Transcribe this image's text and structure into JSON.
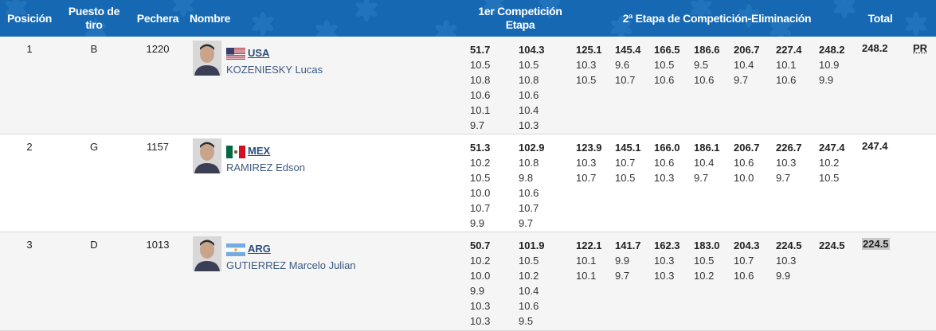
{
  "header": {
    "posicion": "Posición",
    "puesto_de_tiro": "Puesto de tiro",
    "pechera": "Pechera",
    "nombre": "Nombre",
    "etapa1": "1er Competición Etapa",
    "etapa2": "2ª Etapa de Competición-Eliminación",
    "total": "Total",
    "bg_color": "#1668b3"
  },
  "rows": [
    {
      "posicion": "1",
      "puesto": "B",
      "pechera": "1220",
      "country": "USA",
      "flag_icon": "usa-flag-icon",
      "name": "KOZENIESKY Lucas",
      "stage1": [
        {
          "total": "51.7",
          "shots": [
            "10.5",
            "10.8",
            "10.6",
            "10.1",
            "9.7"
          ]
        },
        {
          "total": "104.3",
          "shots": [
            "10.5",
            "10.8",
            "10.6",
            "10.4",
            "10.3"
          ]
        }
      ],
      "stage2": [
        {
          "total": "125.1",
          "shots": [
            "10.3",
            "10.5"
          ]
        },
        {
          "total": "145.4",
          "shots": [
            "9.6",
            "10.7"
          ]
        },
        {
          "total": "166.5",
          "shots": [
            "10.5",
            "10.6"
          ]
        },
        {
          "total": "186.6",
          "shots": [
            "9.5",
            "10.6"
          ]
        },
        {
          "total": "206.7",
          "shots": [
            "10.4",
            "9.7"
          ]
        },
        {
          "total": "227.4",
          "shots": [
            "10.1",
            "10.6"
          ]
        },
        {
          "total": "248.2",
          "shots": [
            "10.9",
            "9.9"
          ]
        }
      ],
      "total": "248.2",
      "note": "PR"
    },
    {
      "posicion": "2",
      "puesto": "G",
      "pechera": "1157",
      "country": "MEX",
      "flag_icon": "mex-flag-icon",
      "name": "RAMIREZ Edson",
      "stage1": [
        {
          "total": "51.3",
          "shots": [
            "10.2",
            "10.5",
            "10.0",
            "10.7",
            "9.9"
          ]
        },
        {
          "total": "102.9",
          "shots": [
            "10.8",
            "9.8",
            "10.6",
            "10.7",
            "9.7"
          ]
        }
      ],
      "stage2": [
        {
          "total": "123.9",
          "shots": [
            "10.3",
            "10.7"
          ]
        },
        {
          "total": "145.1",
          "shots": [
            "10.7",
            "10.5"
          ]
        },
        {
          "total": "166.0",
          "shots": [
            "10.6",
            "10.3"
          ]
        },
        {
          "total": "186.1",
          "shots": [
            "10.4",
            "9.7"
          ]
        },
        {
          "total": "206.7",
          "shots": [
            "10.6",
            "10.0"
          ]
        },
        {
          "total": "226.7",
          "shots": [
            "10.3",
            "9.7"
          ]
        },
        {
          "total": "247.4",
          "shots": [
            "10.2",
            "10.5"
          ]
        }
      ],
      "total": "247.4",
      "note": ""
    },
    {
      "posicion": "3",
      "puesto": "D",
      "pechera": "1013",
      "country": "ARG",
      "flag_icon": "arg-flag-icon",
      "name": "GUTIERREZ Marcelo Julian",
      "stage1": [
        {
          "total": "50.7",
          "shots": [
            "10.2",
            "10.0",
            "9.9",
            "10.3",
            "10.3"
          ]
        },
        {
          "total": "101.9",
          "shots": [
            "10.5",
            "10.2",
            "10.4",
            "10.6",
            "9.5"
          ]
        }
      ],
      "stage2": [
        {
          "total": "122.1",
          "shots": [
            "10.1",
            "10.1"
          ]
        },
        {
          "total": "141.7",
          "shots": [
            "9.9",
            "9.7"
          ]
        },
        {
          "total": "162.3",
          "shots": [
            "10.3",
            "10.3"
          ]
        },
        {
          "total": "183.0",
          "shots": [
            "10.5",
            "10.2"
          ]
        },
        {
          "total": "204.3",
          "shots": [
            "10.7",
            "10.6"
          ]
        },
        {
          "total": "224.5",
          "shots": [
            "10.3",
            "9.9"
          ]
        },
        {
          "total": "224.5",
          "shots": []
        }
      ],
      "total": "224.5",
      "note": ""
    }
  ]
}
